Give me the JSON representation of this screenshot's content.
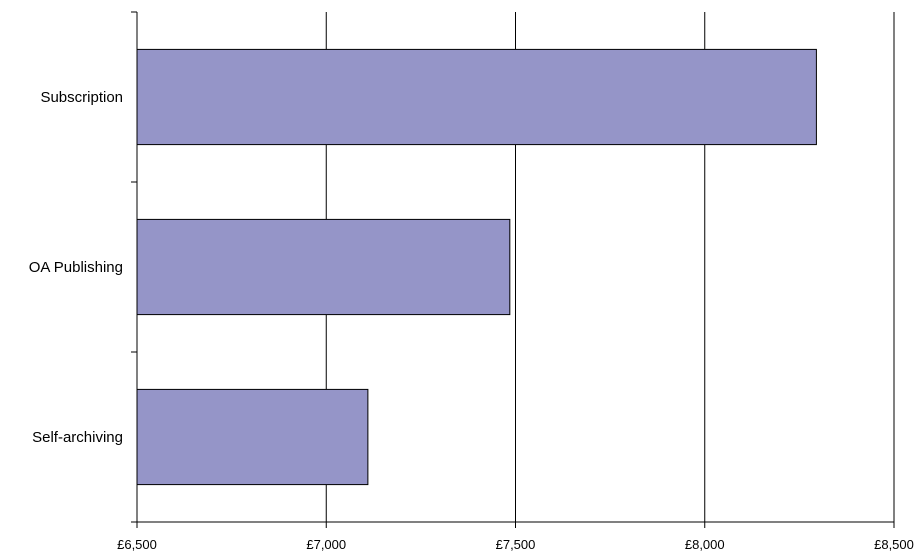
{
  "chart_data": {
    "type": "bar",
    "orientation": "horizontal",
    "title": "",
    "xlabel": "",
    "ylabel": "",
    "categories": [
      "Subscription",
      "OA Publishing",
      "Self-archiving"
    ],
    "values": [
      8295,
      7485,
      7110
    ],
    "xlim": [
      6500,
      8500
    ],
    "x_ticks": [
      6500,
      7000,
      7500,
      8000,
      8500
    ],
    "x_tick_labels": [
      "£6,500",
      "£7,000",
      "£7,500",
      "£8,000",
      "£8,500"
    ],
    "grid": "vertical major gridlines",
    "legend": "none",
    "colors": {
      "bar_fill": "#9595c8",
      "bar_stroke": "#000000",
      "grid": "#000000"
    }
  }
}
